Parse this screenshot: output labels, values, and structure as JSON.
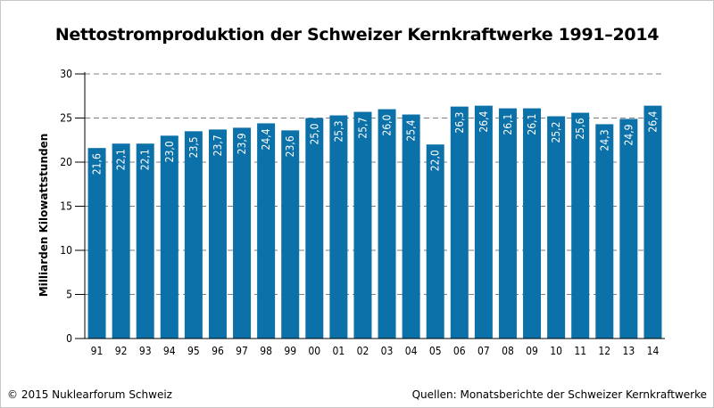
{
  "chart_data": {
    "type": "bar",
    "title": "Nettostromproduktion der Schweizer Kernkraftwerke 1991–2014",
    "ylabel": "Milliarden Kilowattstunden",
    "xlabel": "",
    "categories": [
      "91",
      "92",
      "93",
      "94",
      "95",
      "96",
      "97",
      "98",
      "99",
      "00",
      "01",
      "02",
      "03",
      "04",
      "05",
      "06",
      "07",
      "08",
      "09",
      "10",
      "11",
      "12",
      "13",
      "14"
    ],
    "values": [
      21.6,
      22.1,
      22.1,
      23.0,
      23.5,
      23.7,
      23.9,
      24.4,
      23.6,
      25.0,
      25.3,
      25.7,
      26.0,
      25.4,
      22.0,
      26.3,
      26.4,
      26.1,
      26.1,
      25.2,
      25.6,
      24.3,
      24.9,
      26.4
    ],
    "value_labels": [
      "21,6",
      "22,1",
      "22,1",
      "23,0",
      "23,5",
      "23,7",
      "23,9",
      "24,4",
      "23,6",
      "25,0",
      "25,3",
      "25,7",
      "26,0",
      "25,4",
      "22,0",
      "26,3",
      "26,4",
      "26,1",
      "26,1",
      "25,2",
      "25,6",
      "24,3",
      "24,9",
      "26,4"
    ],
    "ylim": [
      0,
      30
    ],
    "yticks": [
      "0",
      "5",
      "10",
      "15",
      "20",
      "25",
      "30"
    ],
    "grid": "dashed-horizontal",
    "bar_color": "#0b71a8"
  },
  "footer": {
    "copyright": "© 2015 Nuklearforum Schweiz",
    "source": "Quellen: Monatsberichte der Schweizer Kernkraftwerke"
  }
}
